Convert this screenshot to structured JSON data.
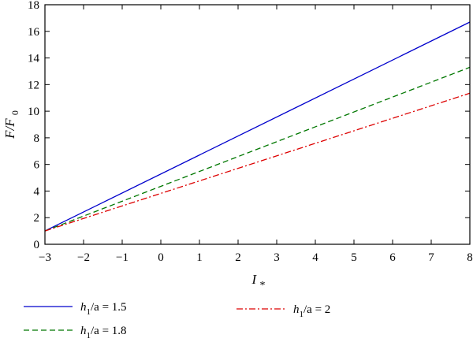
{
  "chart_data": {
    "type": "line",
    "title": "",
    "xlabel": "I*",
    "ylabel": "F/F0",
    "xlim": [
      -3,
      8
    ],
    "ylim": [
      0,
      18
    ],
    "xticks": [
      "−3",
      "−2",
      "−1",
      "0",
      "1",
      "2",
      "3",
      "4",
      "5",
      "6",
      "7",
      "8"
    ],
    "yticks": [
      "0",
      "2",
      "4",
      "6",
      "8",
      "10",
      "12",
      "14",
      "16",
      "18"
    ],
    "grid": false,
    "legend_position": "bottom",
    "series": [
      {
        "name": "h1/a = 1.5",
        "label_parts": [
          "h",
          "1",
          "/a = 1.5"
        ],
        "color": "#0000cc",
        "dash": "solid",
        "x": [
          -3,
          8
        ],
        "y": [
          1.0,
          16.7
        ]
      },
      {
        "name": "h1/a = 1.8",
        "label_parts": [
          "h",
          "1",
          "/a = 1.8"
        ],
        "color": "#007700",
        "dash": "dashed",
        "x": [
          -3,
          8
        ],
        "y": [
          1.0,
          13.3
        ]
      },
      {
        "name": "h1/a = 2",
        "label_parts": [
          "h",
          "1",
          "/a = 2"
        ],
        "color": "#dd0000",
        "dash": "dashdot",
        "x": [
          -3,
          8
        ],
        "y": [
          1.0,
          11.35
        ]
      }
    ]
  }
}
